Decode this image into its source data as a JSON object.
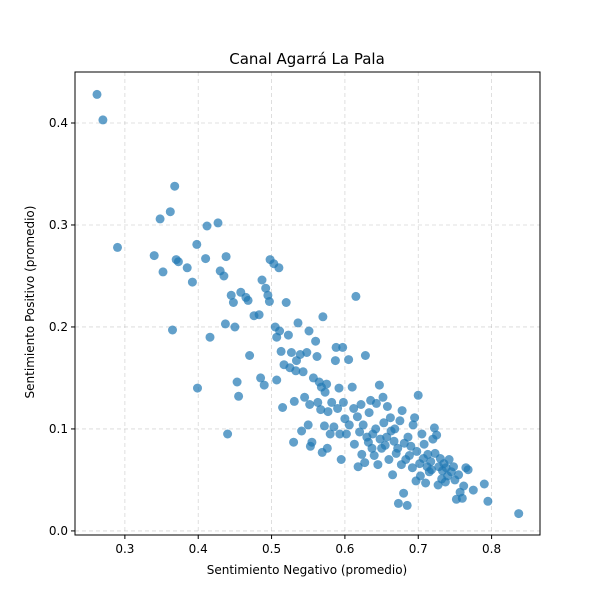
{
  "chart_data": {
    "type": "scatter",
    "title": "Canal Agarrá La Pala",
    "xlabel": "Sentimiento Negativo (promedio)",
    "ylabel": "Sentimiento Positivo (promedio)",
    "xlim": [
      0.232,
      0.866
    ],
    "ylim": [
      -0.004,
      0.45
    ],
    "xticks": [
      0.3,
      0.4,
      0.5,
      0.6,
      0.7,
      0.8
    ],
    "xtick_labels": [
      "0.3",
      "0.4",
      "0.5",
      "0.6",
      "0.7",
      "0.8"
    ],
    "yticks": [
      0.0,
      0.1,
      0.2,
      0.3,
      0.4
    ],
    "ytick_labels": [
      "0.0",
      "0.1",
      "0.2",
      "0.3",
      "0.4"
    ],
    "grid": true,
    "marker_color": "#1f77b4",
    "points": [
      [
        0.262,
        0.428
      ],
      [
        0.27,
        0.403
      ],
      [
        0.29,
        0.278
      ],
      [
        0.34,
        0.27
      ],
      [
        0.348,
        0.306
      ],
      [
        0.352,
        0.254
      ],
      [
        0.362,
        0.313
      ],
      [
        0.365,
        0.197
      ],
      [
        0.368,
        0.338
      ],
      [
        0.37,
        0.266
      ],
      [
        0.373,
        0.264
      ],
      [
        0.385,
        0.258
      ],
      [
        0.392,
        0.244
      ],
      [
        0.398,
        0.281
      ],
      [
        0.399,
        0.14
      ],
      [
        0.41,
        0.267
      ],
      [
        0.412,
        0.299
      ],
      [
        0.416,
        0.19
      ],
      [
        0.427,
        0.302
      ],
      [
        0.43,
        0.255
      ],
      [
        0.435,
        0.25
      ],
      [
        0.437,
        0.203
      ],
      [
        0.438,
        0.269
      ],
      [
        0.44,
        0.095
      ],
      [
        0.445,
        0.231
      ],
      [
        0.448,
        0.224
      ],
      [
        0.45,
        0.2
      ],
      [
        0.453,
        0.146
      ],
      [
        0.455,
        0.132
      ],
      [
        0.458,
        0.234
      ],
      [
        0.465,
        0.229
      ],
      [
        0.468,
        0.226
      ],
      [
        0.47,
        0.172
      ],
      [
        0.476,
        0.211
      ],
      [
        0.483,
        0.212
      ],
      [
        0.485,
        0.15
      ],
      [
        0.487,
        0.246
      ],
      [
        0.49,
        0.143
      ],
      [
        0.492,
        0.238
      ],
      [
        0.495,
        0.231
      ],
      [
        0.497,
        0.225
      ],
      [
        0.498,
        0.266
      ],
      [
        0.503,
        0.262
      ],
      [
        0.505,
        0.2
      ],
      [
        0.507,
        0.19
      ],
      [
        0.507,
        0.148
      ],
      [
        0.51,
        0.258
      ],
      [
        0.511,
        0.196
      ],
      [
        0.513,
        0.176
      ],
      [
        0.515,
        0.121
      ],
      [
        0.517,
        0.163
      ],
      [
        0.52,
        0.224
      ],
      [
        0.523,
        0.192
      ],
      [
        0.525,
        0.16
      ],
      [
        0.527,
        0.175
      ],
      [
        0.53,
        0.087
      ],
      [
        0.531,
        0.127
      ],
      [
        0.533,
        0.157
      ],
      [
        0.534,
        0.167
      ],
      [
        0.536,
        0.204
      ],
      [
        0.539,
        0.173
      ],
      [
        0.541,
        0.098
      ],
      [
        0.543,
        0.156
      ],
      [
        0.545,
        0.131
      ],
      [
        0.548,
        0.175
      ],
      [
        0.55,
        0.104
      ],
      [
        0.551,
        0.196
      ],
      [
        0.552,
        0.124
      ],
      [
        0.553,
        0.083
      ],
      [
        0.555,
        0.087
      ],
      [
        0.557,
        0.15
      ],
      [
        0.56,
        0.186
      ],
      [
        0.562,
        0.171
      ],
      [
        0.563,
        0.126
      ],
      [
        0.565,
        0.146
      ],
      [
        0.567,
        0.119
      ],
      [
        0.568,
        0.141
      ],
      [
        0.569,
        0.077
      ],
      [
        0.57,
        0.21
      ],
      [
        0.572,
        0.103
      ],
      [
        0.573,
        0.136
      ],
      [
        0.575,
        0.144
      ],
      [
        0.576,
        0.081
      ],
      [
        0.577,
        0.117
      ],
      [
        0.58,
        0.095
      ],
      [
        0.582,
        0.126
      ],
      [
        0.585,
        0.102
      ],
      [
        0.587,
        0.167
      ],
      [
        0.588,
        0.18
      ],
      [
        0.59,
        0.12
      ],
      [
        0.592,
        0.14
      ],
      [
        0.593,
        0.095
      ],
      [
        0.595,
        0.07
      ],
      [
        0.597,
        0.18
      ],
      [
        0.598,
        0.126
      ],
      [
        0.6,
        0.11
      ],
      [
        0.602,
        0.095
      ],
      [
        0.605,
        0.168
      ],
      [
        0.606,
        0.104
      ],
      [
        0.61,
        0.141
      ],
      [
        0.612,
        0.12
      ],
      [
        0.613,
        0.085
      ],
      [
        0.615,
        0.23
      ],
      [
        0.617,
        0.112
      ],
      [
        0.618,
        0.063
      ],
      [
        0.62,
        0.097
      ],
      [
        0.622,
        0.124
      ],
      [
        0.623,
        0.075
      ],
      [
        0.625,
        0.104
      ],
      [
        0.627,
        0.067
      ],
      [
        0.628,
        0.172
      ],
      [
        0.63,
        0.092
      ],
      [
        0.632,
        0.087
      ],
      [
        0.633,
        0.116
      ],
      [
        0.635,
        0.128
      ],
      [
        0.637,
        0.081
      ],
      [
        0.638,
        0.095
      ],
      [
        0.64,
        0.074
      ],
      [
        0.642,
        0.1
      ],
      [
        0.643,
        0.125
      ],
      [
        0.645,
        0.065
      ],
      [
        0.647,
        0.143
      ],
      [
        0.648,
        0.09
      ],
      [
        0.65,
        0.081
      ],
      [
        0.652,
        0.131
      ],
      [
        0.653,
        0.106
      ],
      [
        0.655,
        0.084
      ],
      [
        0.657,
        0.092
      ],
      [
        0.658,
        0.122
      ],
      [
        0.66,
        0.07
      ],
      [
        0.662,
        0.111
      ],
      [
        0.663,
        0.098
      ],
      [
        0.665,
        0.055
      ],
      [
        0.667,
        0.088
      ],
      [
        0.668,
        0.1
      ],
      [
        0.67,
        0.076
      ],
      [
        0.672,
        0.081
      ],
      [
        0.673,
        0.027
      ],
      [
        0.675,
        0.108
      ],
      [
        0.677,
        0.065
      ],
      [
        0.678,
        0.118
      ],
      [
        0.68,
        0.037
      ],
      [
        0.681,
        0.086
      ],
      [
        0.683,
        0.07
      ],
      [
        0.685,
        0.025
      ],
      [
        0.686,
        0.092
      ],
      [
        0.688,
        0.074
      ],
      [
        0.69,
        0.083
      ],
      [
        0.692,
        0.062
      ],
      [
        0.693,
        0.104
      ],
      [
        0.695,
        0.111
      ],
      [
        0.697,
        0.049
      ],
      [
        0.698,
        0.078
      ],
      [
        0.7,
        0.133
      ],
      [
        0.702,
        0.066
      ],
      [
        0.703,
        0.054
      ],
      [
        0.705,
        0.095
      ],
      [
        0.707,
        0.071
      ],
      [
        0.708,
        0.085
      ],
      [
        0.71,
        0.047
      ],
      [
        0.712,
        0.063
      ],
      [
        0.713,
        0.075
      ],
      [
        0.715,
        0.058
      ],
      [
        0.717,
        0.068
      ],
      [
        0.718,
        0.06
      ],
      [
        0.72,
        0.09
      ],
      [
        0.722,
        0.101
      ],
      [
        0.723,
        0.076
      ],
      [
        0.725,
        0.094
      ],
      [
        0.727,
        0.045
      ],
      [
        0.728,
        0.063
      ],
      [
        0.73,
        0.071
      ],
      [
        0.732,
        0.051
      ],
      [
        0.733,
        0.059
      ],
      [
        0.735,
        0.066
      ],
      [
        0.737,
        0.048
      ],
      [
        0.738,
        0.062
      ],
      [
        0.74,
        0.054
      ],
      [
        0.742,
        0.07
      ],
      [
        0.745,
        0.058
      ],
      [
        0.748,
        0.063
      ],
      [
        0.75,
        0.05
      ],
      [
        0.752,
        0.031
      ],
      [
        0.755,
        0.055
      ],
      [
        0.757,
        0.038
      ],
      [
        0.76,
        0.032
      ],
      [
        0.762,
        0.044
      ],
      [
        0.765,
        0.062
      ],
      [
        0.768,
        0.06
      ],
      [
        0.775,
        0.04
      ],
      [
        0.79,
        0.046
      ],
      [
        0.795,
        0.029
      ],
      [
        0.837,
        0.017
      ]
    ]
  }
}
